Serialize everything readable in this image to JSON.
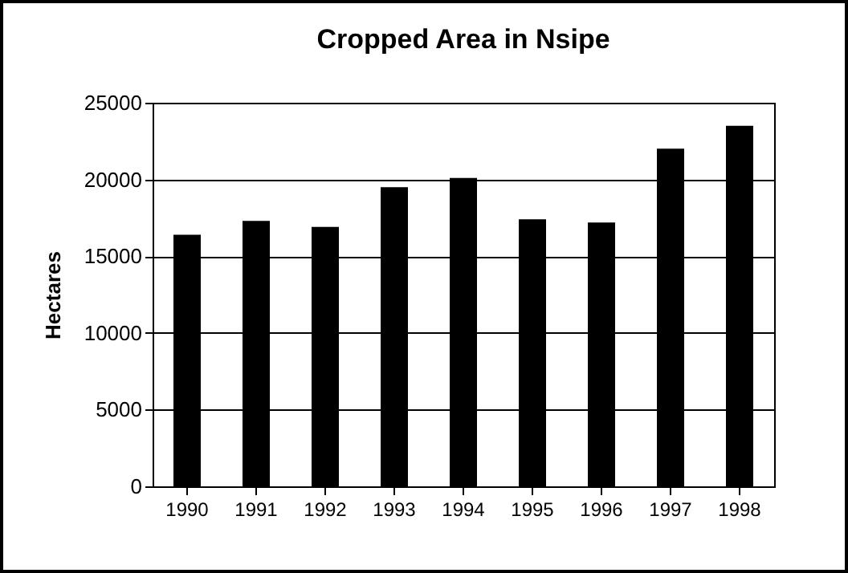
{
  "chart_data": {
    "type": "bar",
    "title": "Cropped Area in Nsipe",
    "ylabel": "Hectares",
    "categories": [
      "1990",
      "1991",
      "1992",
      "1993",
      "1994",
      "1995",
      "1996",
      "1997",
      "1998"
    ],
    "values": [
      16400,
      17300,
      16900,
      19500,
      20100,
      17400,
      17200,
      22000,
      23500
    ],
    "color": "#000000",
    "ylim": [
      0,
      25000
    ],
    "yticks": [
      0,
      5000,
      10000,
      15000,
      20000,
      25000
    ],
    "grid": "y"
  }
}
